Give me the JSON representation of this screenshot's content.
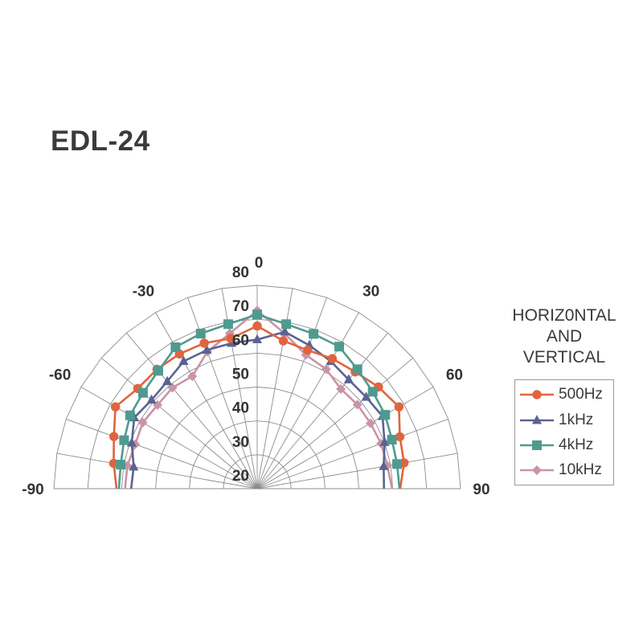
{
  "title": "EDL-24",
  "legend": {
    "title_lines": [
      "HORIZ0NTAL",
      "AND",
      "VERTICAL"
    ],
    "items": [
      {
        "label": "500Hz",
        "marker": "circle-icon",
        "color": "#e0643f"
      },
      {
        "label": "1kHz",
        "marker": "triangle-icon",
        "color": "#5a6391"
      },
      {
        "label": "4kHz",
        "marker": "square-icon",
        "color": "#4f9a90"
      },
      {
        "label": "10kHz",
        "marker": "diamond-icon",
        "color": "#c994a6"
      }
    ]
  },
  "chart_data": {
    "type": "polar-line",
    "title": "EDL-24",
    "subtitle": "HORIZ0NTAL AND VERTICAL",
    "angle_labels": [
      "-90",
      "-60",
      "-30",
      "0",
      "30",
      "60",
      "90"
    ],
    "radial_labels": [
      "20",
      "30",
      "40",
      "50",
      "60",
      "70",
      "80"
    ],
    "radial_range": [
      20,
      80
    ],
    "angles": [
      -90,
      -80,
      -70,
      -60,
      -50,
      -40,
      -30,
      -20,
      -10,
      0,
      10,
      20,
      30,
      40,
      50,
      60,
      70,
      80,
      90
    ],
    "grid": true,
    "legend_position": "right",
    "series": [
      {
        "name": "500Hz",
        "color": "#e0643f",
        "marker": "circle",
        "values": [
          61.5,
          63,
          65,
          68.3,
          66,
          66,
          65.9,
          65.7,
          65,
          68,
          64.3,
          63.5,
          64.3,
          65,
          66.7,
          68.3,
          64.8,
          64,
          62.2
        ]
      },
      {
        "name": "1kHz",
        "color": "#5a6391",
        "marker": "triangle",
        "values": [
          57.2,
          57,
          59.4,
          61.9,
          60.7,
          61.3,
          63.4,
          63.5,
          63.6,
          64,
          67,
          65,
          63.4,
          62,
          62,
          62.7,
          60,
          57.9,
          57.4
        ]
      },
      {
        "name": "4kHz",
        "color": "#4f9a90",
        "marker": "square",
        "values": [
          60.8,
          60.9,
          61.8,
          63.3,
          64,
          65.4,
          68.2,
          68.7,
          69.3,
          71.4,
          69.3,
          68.6,
          68.4,
          66,
          64.5,
          63.6,
          62.3,
          61.9,
          62
        ]
      },
      {
        "name": "10kHz",
        "color": "#c994a6",
        "marker": "diamond",
        "values": [
          59,
          58.9,
          58.3,
          59,
          58.4,
          58.9,
          58.3,
          63,
          66.5,
          72.6,
          66.5,
          62,
          60.7,
          58.4,
          58.6,
          58.6,
          58.9,
          59,
          59.8
        ]
      }
    ]
  }
}
